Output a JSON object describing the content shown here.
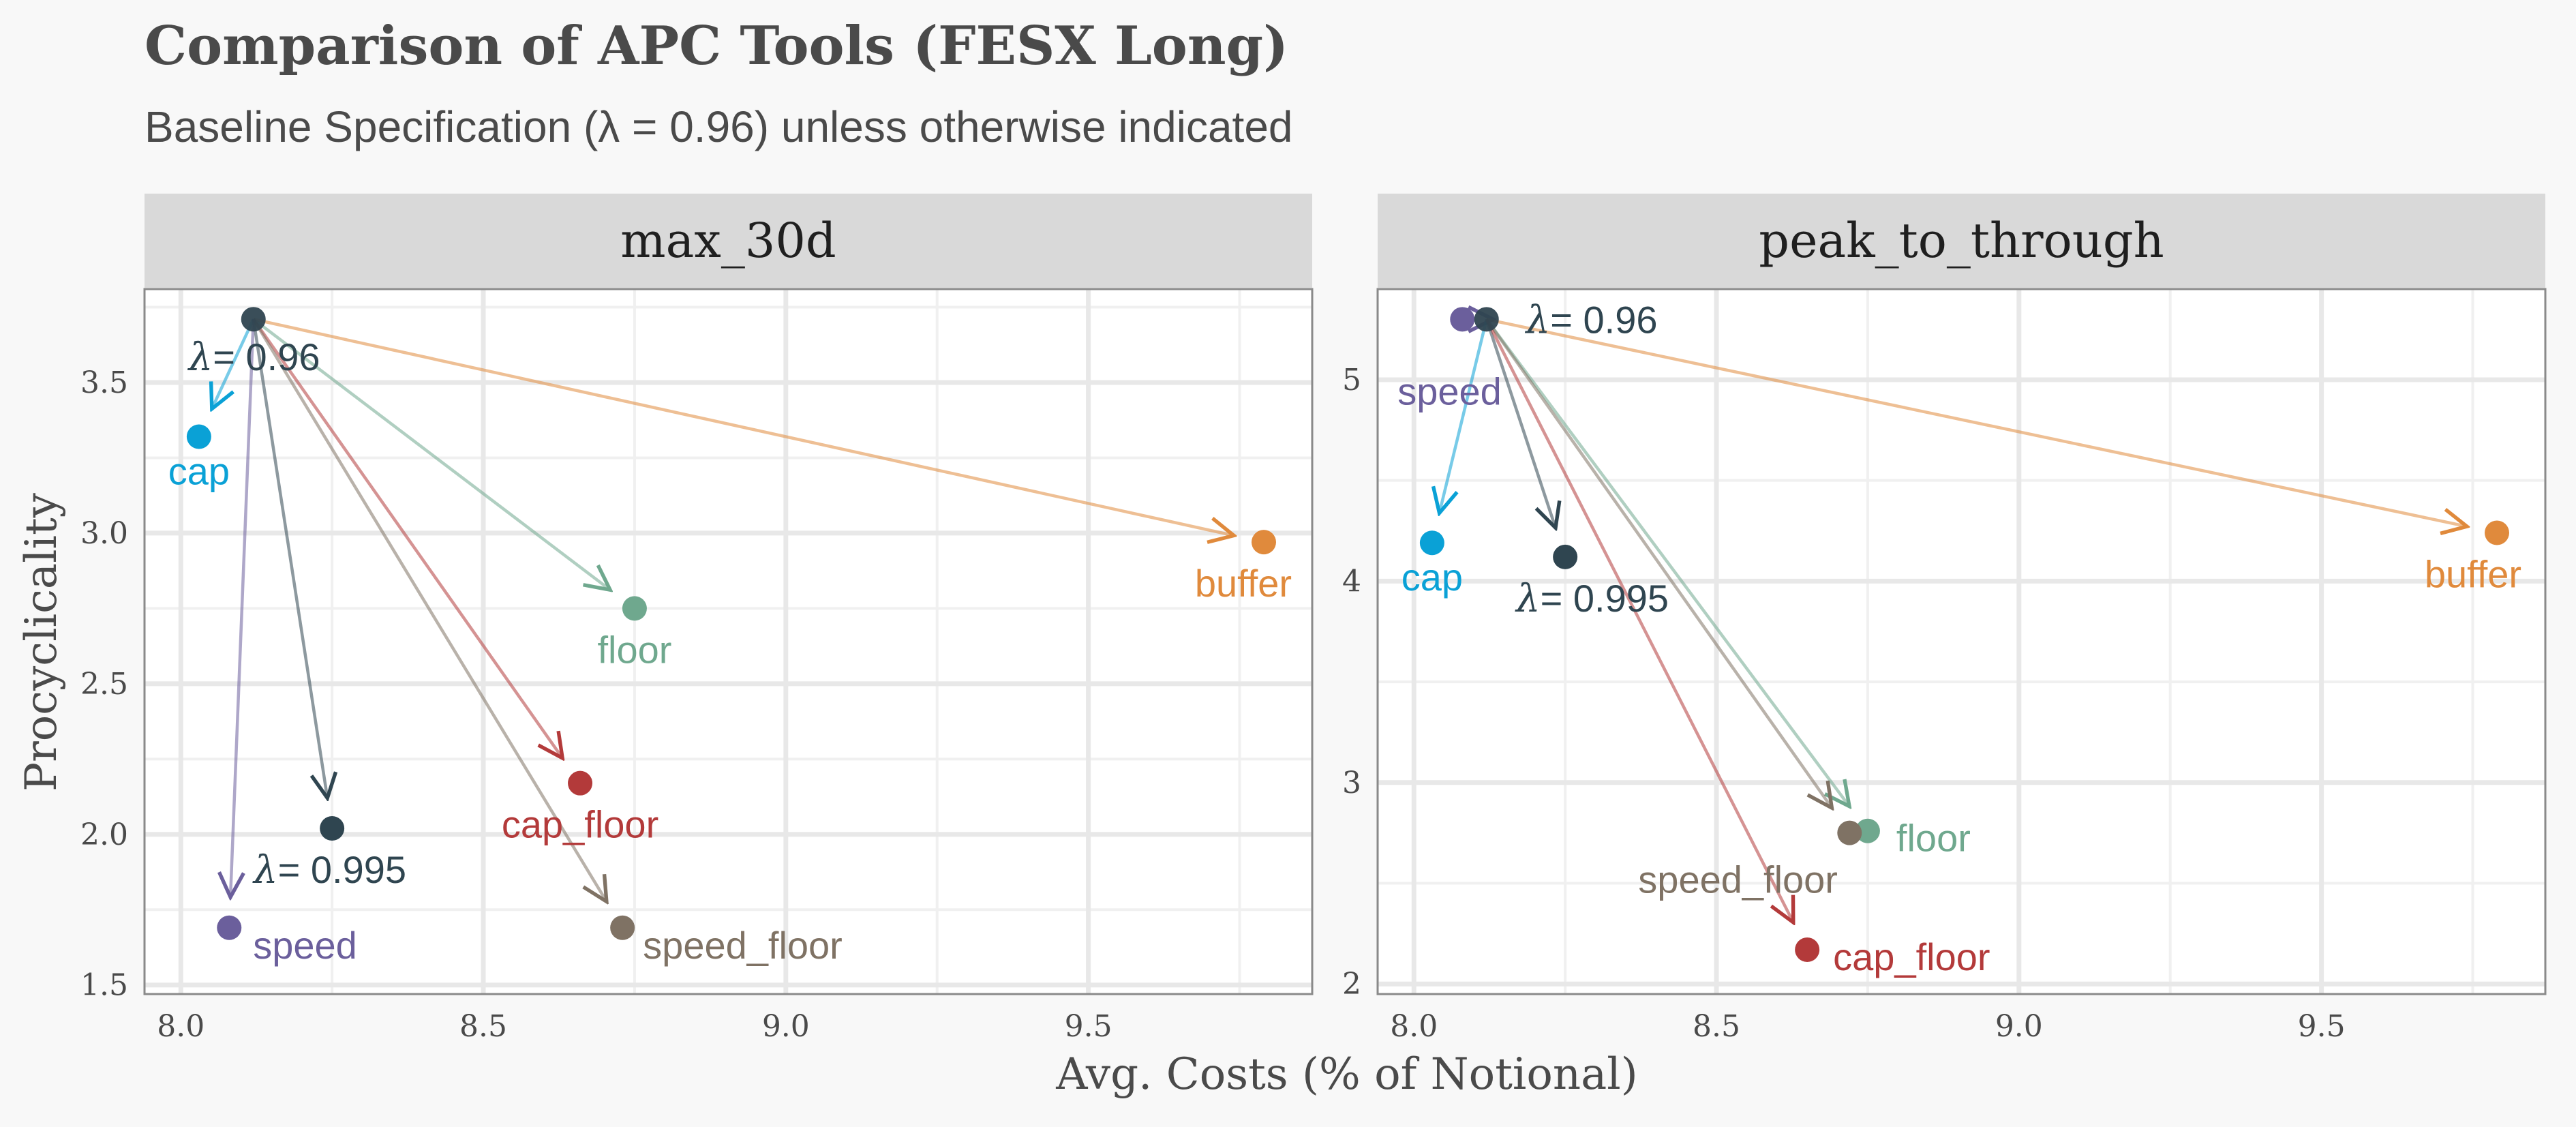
{
  "title": "Comparison of APC Tools (FESX Long)",
  "subtitle": "Baseline Specification (λ = 0.96) unless otherwise indicated",
  "chart_data": {
    "type": "scatter",
    "xlabel": "Avg. Costs (% of Notional)",
    "ylabel": "Procyclicality",
    "grid": true,
    "legend": "none",
    "series_colors": {
      "cap": "#0aa1d6",
      "buffer": "#e08a3c",
      "floor": "#6fa88e",
      "cap_floor": "#b33a3a",
      "speed": "#6b5f9c",
      "speed_floor": "#7f7264",
      "lambda_0.96": "#2f4550",
      "lambda_0.995": "#2f4550"
    },
    "panels": [
      {
        "facet": "max_30d",
        "xlim": [
          7.94,
          9.87
        ],
        "ylim": [
          1.47,
          3.81
        ],
        "x_ticks": [
          8.0,
          8.5,
          9.0,
          9.5
        ],
        "x_tick_labels": [
          "8.0",
          "8.5",
          "9.0",
          "9.5"
        ],
        "y_ticks": [
          1.5,
          2.0,
          2.5,
          3.0,
          3.5
        ],
        "y_tick_labels": [
          "1.5",
          "2.0",
          "2.5",
          "3.0",
          "3.5"
        ],
        "origin": {
          "key": "lambda_0.96",
          "x": 8.12,
          "y": 3.71,
          "label_parts": [
            "λ",
            "= 0.96"
          ]
        },
        "points": [
          {
            "key": "cap",
            "x": 8.03,
            "y": 3.32,
            "label": "cap"
          },
          {
            "key": "buffer",
            "x": 9.79,
            "y": 2.97,
            "label": "buffer"
          },
          {
            "key": "floor",
            "x": 8.75,
            "y": 2.75,
            "label": "floor"
          },
          {
            "key": "cap_floor",
            "x": 8.66,
            "y": 2.17,
            "label": "cap_floor"
          },
          {
            "key": "lambda_0.995",
            "x": 8.25,
            "y": 2.02,
            "label": "= 0.995",
            "label_prefix": "λ"
          },
          {
            "key": "speed",
            "x": 8.08,
            "y": 1.69,
            "label": "speed"
          },
          {
            "key": "speed_floor",
            "x": 8.73,
            "y": 1.69,
            "label": "speed_floor"
          }
        ]
      },
      {
        "facet": "peak_to_through",
        "xlim": [
          7.94,
          9.87
        ],
        "ylim": [
          1.95,
          5.45
        ],
        "x_ticks": [
          8.0,
          8.5,
          9.0,
          9.5
        ],
        "x_tick_labels": [
          "8.0",
          "8.5",
          "9.0",
          "9.5"
        ],
        "y_ticks": [
          2,
          3,
          4,
          5
        ],
        "y_tick_labels": [
          "2",
          "3",
          "4",
          "5"
        ],
        "origin": {
          "key": "lambda_0.96",
          "x": 8.12,
          "y": 5.3,
          "label_parts": [
            "λ",
            "= 0.96"
          ]
        },
        "points": [
          {
            "key": "speed",
            "x": 8.08,
            "y": 5.3,
            "label": "speed"
          },
          {
            "key": "cap",
            "x": 8.03,
            "y": 4.19,
            "label": "cap"
          },
          {
            "key": "lambda_0.995",
            "x": 8.25,
            "y": 4.12,
            "label": "= 0.995",
            "label_prefix": "λ"
          },
          {
            "key": "buffer",
            "x": 9.79,
            "y": 4.24,
            "label": "buffer"
          },
          {
            "key": "floor",
            "x": 8.75,
            "y": 2.76,
            "label": "floor"
          },
          {
            "key": "speed_floor",
            "x": 8.72,
            "y": 2.75,
            "label": "speed_floor"
          },
          {
            "key": "cap_floor",
            "x": 8.65,
            "y": 2.17,
            "label": "cap_floor"
          }
        ]
      }
    ]
  }
}
